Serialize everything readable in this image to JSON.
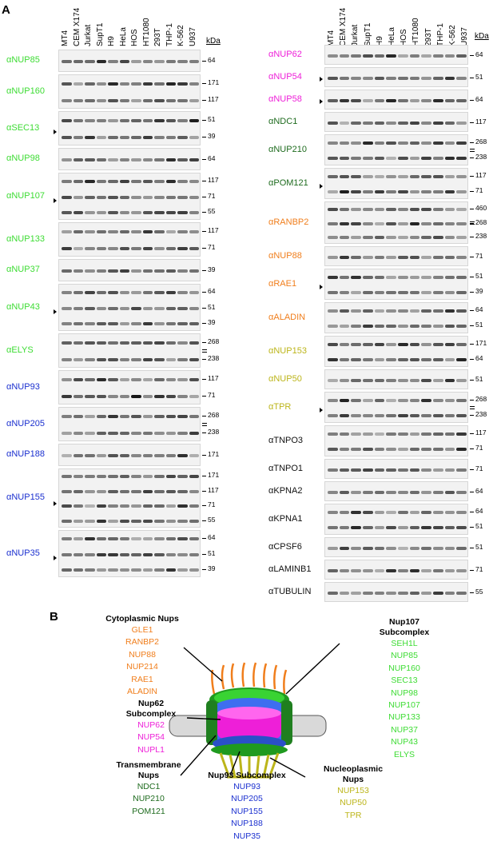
{
  "panel_a": {
    "label": "A",
    "kda_label": "kDa",
    "cell_lines": [
      "MT4",
      "CEM X174",
      "Jurkat",
      "SupT1",
      "H9",
      "HeLa",
      "HOS",
      "HT1080",
      "293T",
      "THP-1",
      "K-562",
      "U937"
    ],
    "colors": {
      "nup107": "#3ddc33",
      "nup93": "#1a2fcf",
      "nup62": "#ee1fd8",
      "transmembrane": "#1e6b1e",
      "cytoplasmic": "#f07e1c",
      "nucleoplasmic": "#bcb51a",
      "other": "#111111"
    },
    "left_blots": [
      {
        "label": "αNUP85",
        "color": "nup107",
        "mw": [
          "64"
        ],
        "marks": []
      },
      {
        "label": "αNUP160",
        "color": "nup107",
        "mw": [
          "171",
          "117"
        ],
        "marks": []
      },
      {
        "label": "αSEC13",
        "color": "nup107",
        "mw": [
          "51",
          "39"
        ],
        "marks": [
          "arrow"
        ]
      },
      {
        "label": "αNUP98",
        "color": "nup107",
        "mw": [
          "64"
        ],
        "marks": []
      },
      {
        "label": "αNUP107",
        "color": "nup107",
        "mw": [
          "117",
          "71",
          "55"
        ],
        "marks": [
          "arrow"
        ]
      },
      {
        "label": "αNUP133",
        "color": "nup107",
        "mw": [
          "117",
          "71"
        ],
        "marks": []
      },
      {
        "label": "αNUP37",
        "color": "nup107",
        "mw": [
          "39"
        ],
        "marks": []
      },
      {
        "label": "αNUP43",
        "color": "nup107",
        "mw": [
          "64",
          "51",
          "39"
        ],
        "marks": [
          "arrow"
        ]
      },
      {
        "label": "αELYS",
        "color": "nup107",
        "mw": [
          "268",
          "238"
        ],
        "marks": [
          "dbl"
        ]
      },
      {
        "label": "αNUP93",
        "color": "nup93",
        "mw": [
          "117",
          "71"
        ],
        "marks": []
      },
      {
        "label": "αNUP205",
        "color": "nup93",
        "mw": [
          "268",
          "238"
        ],
        "marks": [
          "dbl"
        ]
      },
      {
        "label": "αNUP188",
        "color": "nup93",
        "mw": [
          "171"
        ],
        "marks": []
      },
      {
        "label": "αNUP155",
        "color": "nup93",
        "mw": [
          "171",
          "117",
          "71",
          "55"
        ],
        "marks": [
          "arrow"
        ]
      },
      {
        "label": "αNUP35",
        "color": "nup93",
        "mw": [
          "64",
          "51",
          "39"
        ],
        "marks": [
          "arrow"
        ]
      }
    ],
    "right_blots": [
      {
        "label": "αNUP62",
        "color": "nup62",
        "mw": [
          "64"
        ],
        "marks": []
      },
      {
        "label": "αNUP54",
        "color": "nup62",
        "mw": [
          "51"
        ],
        "marks": [
          "arrow"
        ]
      },
      {
        "label": "αNUP58",
        "color": "nup62",
        "mw": [
          "64"
        ],
        "marks": [
          "arrow"
        ]
      },
      {
        "label": "αNDC1",
        "color": "transmembrane",
        "mw": [
          "117"
        ],
        "marks": []
      },
      {
        "label": "αNUP210",
        "color": "transmembrane",
        "mw": [
          "268",
          "238"
        ],
        "marks": [
          "dbl"
        ]
      },
      {
        "label": "αPOM121",
        "color": "transmembrane",
        "mw": [
          "117",
          "71"
        ],
        "marks": [
          "arrow"
        ]
      },
      {
        "label": "αRANBP2",
        "color": "cytoplasmic",
        "mw": [
          "460",
          "268",
          "238"
        ],
        "marks": [
          "dbl"
        ]
      },
      {
        "label": "αNUP88",
        "color": "cytoplasmic",
        "mw": [
          "71"
        ],
        "marks": []
      },
      {
        "label": "αRAE1",
        "color": "cytoplasmic",
        "mw": [
          "51",
          "39"
        ],
        "marks": [
          "arrow"
        ]
      },
      {
        "label": "αALADIN",
        "color": "cytoplasmic",
        "mw": [
          "64",
          "51"
        ],
        "marks": []
      },
      {
        "label": "αNUP153",
        "color": "nucleoplasmic",
        "mw": [
          "171",
          "64"
        ],
        "marks": []
      },
      {
        "label": "αNUP50",
        "color": "nucleoplasmic",
        "mw": [
          "51"
        ],
        "marks": []
      },
      {
        "label": "αTPR",
        "color": "nucleoplasmic",
        "mw": [
          "268",
          "238"
        ],
        "marks": [
          "arrow",
          "dbl"
        ]
      },
      {
        "label": "αTNPO3",
        "color": "other",
        "mw": [
          "117",
          "71"
        ],
        "marks": []
      },
      {
        "label": "αTNPO1",
        "color": "other",
        "mw": [
          "71"
        ],
        "marks": []
      },
      {
        "label": "αKPNA2",
        "color": "other",
        "mw": [
          "64"
        ],
        "marks": []
      },
      {
        "label": "αKPNA1",
        "color": "other",
        "mw": [
          "64",
          "51"
        ],
        "marks": []
      },
      {
        "label": "αCPSF6",
        "color": "other",
        "mw": [
          "51"
        ],
        "marks": []
      },
      {
        "label": "αLAMINB1",
        "color": "other",
        "mw": [
          "71"
        ],
        "marks": []
      },
      {
        "label": "αTUBULIN",
        "color": "other",
        "mw": [
          "55"
        ],
        "marks": []
      }
    ]
  },
  "panel_b": {
    "label": "B",
    "groups": {
      "cytoplasmic": {
        "title": "Cytoplasmic Nups",
        "items": [
          "GLE1",
          "RANBP2",
          "NUP88",
          "NUP214",
          "RAE1",
          "ALADIN"
        ],
        "color": "#f07e1c"
      },
      "nup107": {
        "title": "Nup107 Subcomplex",
        "items": [
          "SEH1L",
          "NUP85",
          "NUP160",
          "SEC13",
          "NUP98",
          "NUP107",
          "NUP133",
          "NUP37",
          "NUP43",
          "ELYS"
        ],
        "color": "#3ddc33"
      },
      "nup62": {
        "title": "Nup62 Subcomplex",
        "items": [
          "NUP62",
          "NUP54",
          "NUPL1"
        ],
        "color": "#ee1fd8"
      },
      "transmembrane": {
        "title": "Transmembrane Nups",
        "items": [
          "NDC1",
          "NUP210",
          "POM121"
        ],
        "color": "#1e6b1e"
      },
      "nup93": {
        "title": "Nup93 Subcomplex",
        "items": [
          "NUP93",
          "NUP205",
          "NUP155",
          "NUP188",
          "NUP35"
        ],
        "color": "#1a2fcf"
      },
      "nucleoplasmic": {
        "title": "Nucleoplasmic Nups",
        "items": [
          "NUP153",
          "NUP50",
          "TPR"
        ],
        "color": "#bcb51a"
      }
    }
  }
}
